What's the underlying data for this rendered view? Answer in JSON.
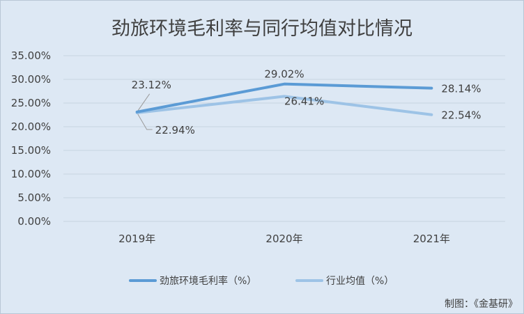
{
  "chart_data": {
    "type": "line",
    "title": "劲旅环境毛利率与同行均值对比情况",
    "categories": [
      "2019年",
      "2020年",
      "2021年"
    ],
    "ylim": [
      0,
      35
    ],
    "yticks": [
      "0.00%",
      "5.00%",
      "10.00%",
      "15.00%",
      "20.00%",
      "25.00%",
      "30.00%",
      "35.00%"
    ],
    "grid": true,
    "legend_position": "bottom",
    "series": [
      {
        "name": "劲旅环境毛利率（%）",
        "values": [
          23.12,
          29.02,
          28.14
        ],
        "labels": [
          "23.12%",
          "29.02%",
          "28.14%"
        ],
        "color": "#5b9bd5"
      },
      {
        "name": "行业均值（%）",
        "values": [
          22.94,
          26.41,
          22.54
        ],
        "labels": [
          "22.94%",
          "26.41%",
          "22.54%"
        ],
        "color": "#9dc3e6"
      }
    ],
    "credit": "制图：《金基研》"
  }
}
